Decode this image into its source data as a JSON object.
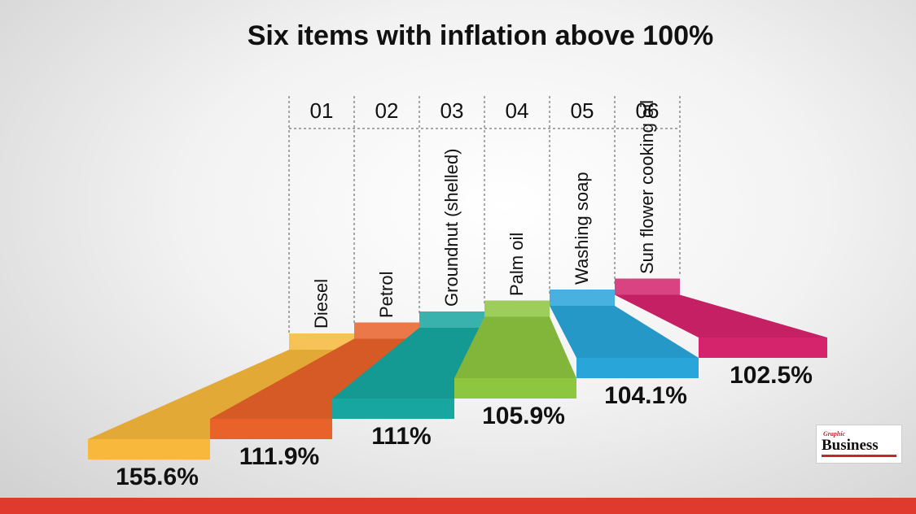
{
  "chart_data": {
    "type": "ribbon",
    "title": "Six items with inflation above 100%",
    "ranks": [
      "01",
      "02",
      "03",
      "04",
      "05",
      "06"
    ],
    "categories": [
      "Diesel",
      "Petrol",
      "Groundnut (shelled)",
      "Palm oil",
      "Washing soap",
      "Sun flower cooking oil"
    ],
    "values": [
      155.6,
      111.9,
      111,
      105.9,
      104.1,
      102.5
    ],
    "value_labels": [
      "155.6%",
      "111.9%",
      "111%",
      "105.9%",
      "104.1%",
      "102.5%"
    ],
    "colors": [
      "#f7b83b",
      "#e8622a",
      "#17a6a0",
      "#8dc63f",
      "#2aa5da",
      "#d5236c"
    ]
  },
  "logo": {
    "small": "Graphic",
    "large": "Business"
  }
}
